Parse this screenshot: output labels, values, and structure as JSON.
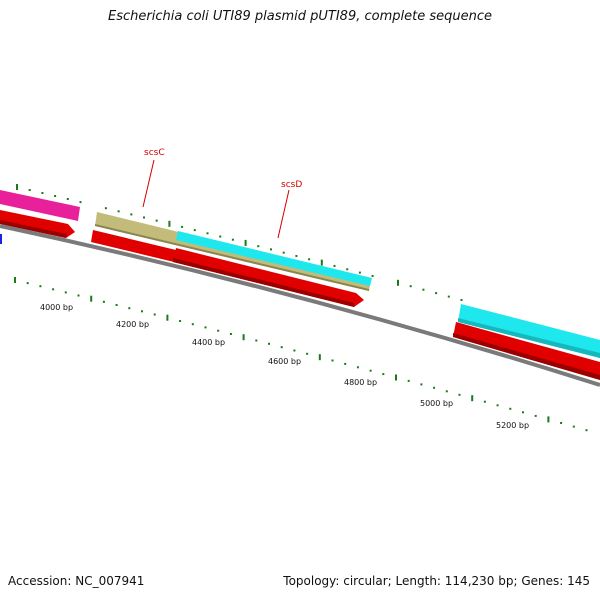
{
  "title": "Escherichia coli UTI89 plasmid pUTI89, complete sequence",
  "footer": {
    "accession": "Accession: NC_007941",
    "summary": "Topology: circular; Length: 114,230 bp; Genes: 145"
  },
  "colors": {
    "backbone": "#7a7a7a",
    "tick": "#1a7a1a",
    "gene_red": "#e00000",
    "gene_magenta": "#e8209a",
    "gene_cyan": "#1ee8ee",
    "gene_khaki": "#c2bb7a",
    "gene_blue": "#2020e0",
    "label": "#d10000"
  },
  "scale": {
    "labels": [
      "4000 bp",
      "4200 bp",
      "4400 bp",
      "4600 bp",
      "4800 bp",
      "5000 bp",
      "5200 bp"
    ]
  },
  "genes": {
    "scsC": "scsC",
    "scsD": "scsD"
  }
}
